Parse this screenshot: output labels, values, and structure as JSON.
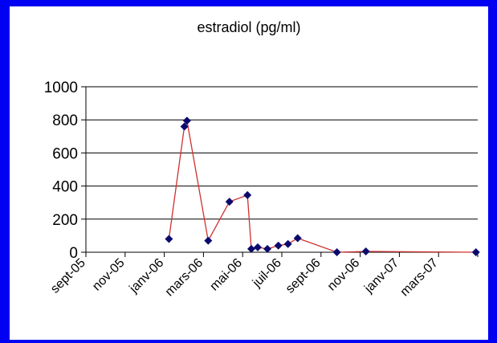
{
  "chart_data": {
    "type": "line",
    "title": "estradiol (pg/ml)",
    "xlabel": "",
    "ylabel": "",
    "ylim": [
      0,
      1000
    ],
    "yticks": [
      "0",
      "200",
      "400",
      "600",
      "800",
      "1000"
    ],
    "xticks": [
      "sept-05",
      "nov-05",
      "janv-06",
      "mars-06",
      "mai-06",
      "juil-06",
      "sept-06",
      "nov-06",
      "janv-07",
      "mars-07"
    ],
    "grid": true,
    "colors": {
      "line": "#d03030",
      "marker": "#0a0a6e",
      "background": "#0000f2"
    },
    "series": [
      {
        "x": [
          "2006-01-08",
          "2006-02-01",
          "2006-02-05",
          "2006-03-10",
          "2006-04-12",
          "2006-05-10",
          "2006-05-16",
          "2006-05-26",
          "2006-06-10",
          "2006-06-27",
          "2006-07-12",
          "2006-07-27",
          "2006-09-26",
          "2006-11-10",
          "2007-04-30"
        ],
        "y": [
          80,
          760,
          795,
          70,
          305,
          345,
          20,
          30,
          20,
          40,
          50,
          85,
          0,
          5,
          0
        ]
      }
    ]
  }
}
